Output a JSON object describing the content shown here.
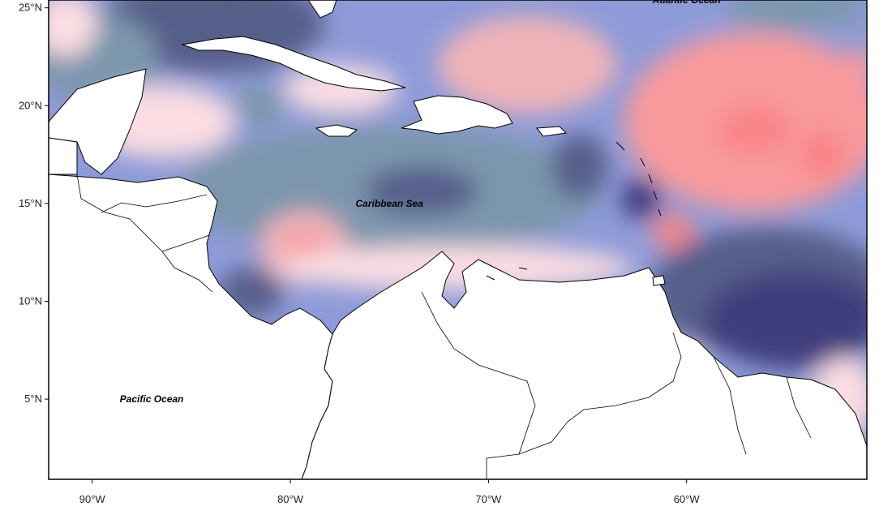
{
  "map": {
    "extent": {
      "lon_min": -92.2,
      "lon_max": -50.9,
      "lat_min": 0.9,
      "lat_max": 25.4
    },
    "ocean_labels": [
      {
        "text": "Atlantic Ocean",
        "lon": -60,
        "lat": 25.4
      },
      {
        "text": "Caribbean Sea",
        "lon": -75,
        "lat": 15.0
      },
      {
        "text": "Pacific Ocean",
        "lon": -87,
        "lat": 5.0
      }
    ],
    "lat_ticks": [
      {
        "label": "25°N",
        "lat": 25
      },
      {
        "label": "20°N",
        "lat": 20
      },
      {
        "label": "15°N",
        "lat": 15
      },
      {
        "label": "10°N",
        "lat": 10
      },
      {
        "label": "5°N",
        "lat": 5
      }
    ],
    "lon_ticks": [
      {
        "label": "90°W",
        "lon": -90
      },
      {
        "label": "80°W",
        "lon": -80
      },
      {
        "label": "70°W",
        "lon": -70
      },
      {
        "label": "60°W",
        "lon": -60
      }
    ],
    "colors": {
      "land": "#ffffff",
      "coast": "#000000",
      "neg_very_strong": "#3f3c7d",
      "neg_strong": "#565f8a",
      "neg_medium": "#7c96ad",
      "neg_light": "#8e9bd8",
      "neutral": "#c9dde3",
      "pos_light": "#fbdde2",
      "pos_medium": "#efb3b8",
      "pos_strong": "#f99a9c",
      "pos_very_strong": "#f98487"
    }
  }
}
